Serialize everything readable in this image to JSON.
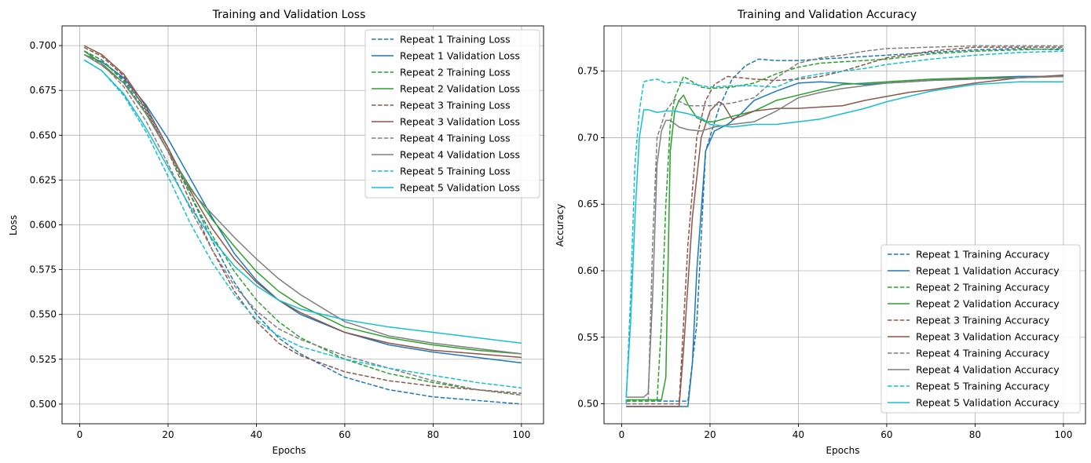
{
  "chart_data": [
    {
      "type": "line",
      "title": "Training and Validation Loss",
      "xlabel": "Epochs",
      "ylabel": "Loss",
      "xlim": [
        -4,
        105
      ],
      "ylim": [
        0.489,
        0.711
      ],
      "xticks": [
        0,
        20,
        40,
        60,
        80,
        100
      ],
      "yticks": [
        0.5,
        0.525,
        0.55,
        0.575,
        0.6,
        0.625,
        0.65,
        0.675,
        0.7
      ],
      "ytick_labels": [
        "0.500",
        "0.525",
        "0.550",
        "0.575",
        "0.600",
        "0.625",
        "0.650",
        "0.675",
        "0.700"
      ],
      "grid": true,
      "legend_position": "top-right",
      "series": [
        {
          "name": "Repeat 1 Training Loss",
          "style": "dashed",
          "color": "#1f77b4",
          "x": [
            1,
            5,
            10,
            15,
            20,
            25,
            30,
            35,
            40,
            45,
            50,
            60,
            70,
            80,
            90,
            100
          ],
          "y": [
            0.697,
            0.692,
            0.681,
            0.665,
            0.643,
            0.617,
            0.591,
            0.568,
            0.55,
            0.537,
            0.528,
            0.515,
            0.508,
            0.504,
            0.502,
            0.5
          ]
        },
        {
          "name": "Repeat 1 Validation Loss",
          "style": "solid",
          "color": "#1f77b4",
          "x": [
            1,
            5,
            10,
            15,
            20,
            25,
            30,
            35,
            40,
            45,
            50,
            60,
            70,
            80,
            90,
            100
          ],
          "y": [
            0.695,
            0.691,
            0.682,
            0.667,
            0.648,
            0.626,
            0.604,
            0.584,
            0.569,
            0.558,
            0.55,
            0.54,
            0.533,
            0.529,
            0.526,
            0.523
          ]
        },
        {
          "name": "Repeat 2 Training Loss",
          "style": "dashed",
          "color": "#2ca02c",
          "x": [
            1,
            5,
            10,
            15,
            20,
            25,
            30,
            35,
            40,
            45,
            50,
            60,
            70,
            80,
            90,
            100
          ],
          "y": [
            0.697,
            0.692,
            0.68,
            0.663,
            0.641,
            0.617,
            0.594,
            0.574,
            0.558,
            0.546,
            0.537,
            0.525,
            0.517,
            0.512,
            0.508,
            0.505
          ]
        },
        {
          "name": "Repeat 2 Validation Loss",
          "style": "solid",
          "color": "#2ca02c",
          "x": [
            1,
            5,
            10,
            15,
            20,
            25,
            30,
            35,
            40,
            45,
            50,
            60,
            70,
            80,
            90,
            100
          ],
          "y": [
            0.697,
            0.69,
            0.679,
            0.662,
            0.641,
            0.621,
            0.603,
            0.588,
            0.574,
            0.563,
            0.555,
            0.543,
            0.537,
            0.533,
            0.53,
            0.528
          ]
        },
        {
          "name": "Repeat 3 Training Loss",
          "style": "dashed",
          "color": "#8c564b",
          "x": [
            1,
            5,
            10,
            15,
            20,
            25,
            30,
            35,
            40,
            45,
            50,
            60,
            70,
            80,
            90,
            100
          ],
          "y": [
            0.699,
            0.694,
            0.683,
            0.664,
            0.641,
            0.613,
            0.586,
            0.563,
            0.546,
            0.534,
            0.527,
            0.518,
            0.513,
            0.51,
            0.508,
            0.506
          ]
        },
        {
          "name": "Repeat 3 Validation Loss",
          "style": "solid",
          "color": "#8c564b",
          "x": [
            1,
            5,
            10,
            15,
            20,
            25,
            30,
            35,
            40,
            45,
            50,
            60,
            70,
            80,
            90,
            100
          ],
          "y": [
            0.7,
            0.695,
            0.684,
            0.666,
            0.643,
            0.619,
            0.598,
            0.581,
            0.568,
            0.558,
            0.551,
            0.54,
            0.534,
            0.53,
            0.528,
            0.526
          ]
        },
        {
          "name": "Repeat 4 Training Loss",
          "style": "dashed",
          "color": "#7f7f7f",
          "x": [
            1,
            5,
            10,
            15,
            20,
            25,
            30,
            35,
            40,
            45,
            50,
            60,
            70,
            80,
            90,
            100
          ],
          "y": [
            0.695,
            0.69,
            0.677,
            0.658,
            0.634,
            0.609,
            0.586,
            0.566,
            0.552,
            0.542,
            0.536,
            0.527,
            0.52,
            0.513,
            0.508,
            0.505
          ]
        },
        {
          "name": "Repeat 4 Validation Loss",
          "style": "solid",
          "color": "#7f7f7f",
          "x": [
            1,
            5,
            10,
            15,
            20,
            25,
            27,
            30,
            35,
            40,
            45,
            50,
            60,
            70,
            80,
            90,
            100
          ],
          "y": [
            0.695,
            0.689,
            0.679,
            0.662,
            0.641,
            0.62,
            0.614,
            0.606,
            0.593,
            0.581,
            0.57,
            0.561,
            0.546,
            0.538,
            0.534,
            0.531,
            0.528
          ]
        },
        {
          "name": "Repeat 5 Training Loss",
          "style": "dashed",
          "color": "#17becf",
          "x": [
            1,
            5,
            10,
            15,
            20,
            25,
            30,
            35,
            40,
            45,
            50,
            60,
            70,
            80,
            90,
            100
          ],
          "y": [
            0.692,
            0.686,
            0.672,
            0.652,
            0.627,
            0.601,
            0.579,
            0.561,
            0.547,
            0.538,
            0.532,
            0.525,
            0.52,
            0.516,
            0.512,
            0.509
          ]
        },
        {
          "name": "Repeat 5 Validation Loss",
          "style": "solid",
          "color": "#17becf",
          "x": [
            1,
            5,
            10,
            15,
            20,
            25,
            30,
            35,
            40,
            45,
            50,
            60,
            70,
            80,
            90,
            100
          ],
          "y": [
            0.692,
            0.686,
            0.673,
            0.654,
            0.632,
            0.61,
            0.592,
            0.577,
            0.566,
            0.558,
            0.553,
            0.547,
            0.543,
            0.54,
            0.537,
            0.534
          ]
        }
      ]
    },
    {
      "type": "line",
      "title": "Training and Validation Accuracy",
      "xlabel": "Epochs",
      "ylabel": "Accuracy",
      "xlim": [
        -4,
        105
      ],
      "ylim": [
        0.485,
        0.784
      ],
      "xticks": [
        0,
        20,
        40,
        60,
        80,
        100
      ],
      "yticks": [
        0.5,
        0.55,
        0.6,
        0.65,
        0.7,
        0.75
      ],
      "ytick_labels": [
        "0.50",
        "0.55",
        "0.60",
        "0.65",
        "0.70",
        "0.75"
      ],
      "grid": true,
      "legend_position": "bottom-right",
      "series": [
        {
          "name": "Repeat 1 Training Accuracy",
          "style": "dashed",
          "color": "#1f77b4",
          "x": [
            1,
            14,
            15,
            17,
            19,
            22,
            25,
            28,
            31,
            35,
            40,
            45,
            50,
            55,
            60,
            70,
            80,
            90,
            100
          ],
          "y": [
            0.502,
            0.502,
            0.502,
            0.56,
            0.69,
            0.722,
            0.744,
            0.754,
            0.759,
            0.758,
            0.758,
            0.759,
            0.76,
            0.761,
            0.762,
            0.764,
            0.766,
            0.767,
            0.766
          ]
        },
        {
          "name": "Repeat 1 Validation Accuracy",
          "style": "solid",
          "color": "#1f77b4",
          "x": [
            1,
            14,
            15,
            16,
            17,
            19,
            21,
            24,
            27,
            30,
            35,
            40,
            45,
            50,
            55,
            60,
            70,
            80,
            90,
            100
          ],
          "y": [
            0.498,
            0.498,
            0.498,
            0.53,
            0.6,
            0.69,
            0.705,
            0.71,
            0.718,
            0.728,
            0.735,
            0.741,
            0.742,
            0.741,
            0.74,
            0.741,
            0.743,
            0.745,
            0.746,
            0.746
          ]
        },
        {
          "name": "Repeat 2 Training Accuracy",
          "style": "dashed",
          "color": "#2ca02c",
          "x": [
            1,
            7,
            8,
            9,
            10,
            11,
            12,
            14,
            16,
            18,
            20,
            25,
            30,
            35,
            40,
            45,
            50,
            60,
            70,
            80,
            90,
            100
          ],
          "y": [
            0.502,
            0.502,
            0.502,
            0.56,
            0.65,
            0.71,
            0.73,
            0.746,
            0.742,
            0.738,
            0.737,
            0.738,
            0.741,
            0.748,
            0.753,
            0.756,
            0.757,
            0.759,
            0.763,
            0.765,
            0.766,
            0.767
          ]
        },
        {
          "name": "Repeat 2 Validation Accuracy",
          "style": "solid",
          "color": "#2ca02c",
          "x": [
            1,
            8,
            9,
            10,
            11,
            12,
            13,
            14,
            15,
            17,
            19,
            21,
            25,
            30,
            35,
            40,
            45,
            50,
            60,
            70,
            80,
            90,
            100
          ],
          "y": [
            0.503,
            0.503,
            0.503,
            0.52,
            0.69,
            0.72,
            0.728,
            0.732,
            0.725,
            0.715,
            0.712,
            0.712,
            0.716,
            0.72,
            0.728,
            0.732,
            0.736,
            0.74,
            0.742,
            0.744,
            0.745,
            0.745,
            0.746
          ]
        },
        {
          "name": "Repeat 3 Training Accuracy",
          "style": "dashed",
          "color": "#8c564b",
          "x": [
            1,
            12,
            13,
            15,
            17,
            19,
            21,
            24,
            27,
            30,
            35,
            40,
            45,
            50,
            55,
            60,
            70,
            80,
            90,
            100
          ],
          "y": [
            0.5,
            0.5,
            0.5,
            0.62,
            0.7,
            0.728,
            0.74,
            0.746,
            0.745,
            0.744,
            0.743,
            0.744,
            0.746,
            0.75,
            0.755,
            0.76,
            0.765,
            0.768,
            0.768,
            0.768
          ]
        },
        {
          "name": "Repeat 3 Validation Accuracy",
          "style": "solid",
          "color": "#8c564b",
          "x": [
            1,
            12,
            13,
            14,
            16,
            18,
            20,
            22,
            23,
            25,
            27,
            30,
            35,
            40,
            45,
            50,
            55,
            60,
            65,
            70,
            80,
            90,
            100
          ],
          "y": [
            0.498,
            0.498,
            0.498,
            0.54,
            0.64,
            0.7,
            0.72,
            0.727,
            0.725,
            0.714,
            0.716,
            0.72,
            0.722,
            0.722,
            0.723,
            0.724,
            0.728,
            0.731,
            0.734,
            0.736,
            0.741,
            0.745,
            0.747
          ]
        },
        {
          "name": "Repeat 4 Training Accuracy",
          "style": "dashed",
          "color": "#7f7f7f",
          "x": [
            1,
            5,
            6,
            7,
            8,
            10,
            12,
            15,
            20,
            25,
            30,
            35,
            40,
            45,
            50,
            55,
            60,
            70,
            80,
            90,
            100
          ],
          "y": [
            0.5,
            0.5,
            0.5,
            0.62,
            0.7,
            0.72,
            0.729,
            0.724,
            0.724,
            0.726,
            0.73,
            0.745,
            0.756,
            0.76,
            0.762,
            0.765,
            0.767,
            0.768,
            0.769,
            0.769,
            0.769
          ]
        },
        {
          "name": "Repeat 4 Validation Accuracy",
          "style": "solid",
          "color": "#7f7f7f",
          "x": [
            1,
            5,
            6,
            7,
            8,
            9,
            10,
            11,
            13,
            15,
            18,
            21,
            25,
            30,
            35,
            40,
            45,
            50,
            55,
            60,
            70,
            80,
            90,
            100
          ],
          "y": [
            0.505,
            0.505,
            0.508,
            0.58,
            0.68,
            0.705,
            0.713,
            0.713,
            0.708,
            0.706,
            0.705,
            0.708,
            0.71,
            0.712,
            0.72,
            0.73,
            0.734,
            0.737,
            0.739,
            0.741,
            0.743,
            0.744,
            0.745,
            0.746
          ]
        },
        {
          "name": "Repeat 5 Training Accuracy",
          "style": "dashed",
          "color": "#17becf",
          "x": [
            1,
            2,
            3,
            4,
            5,
            6,
            8,
            10,
            12,
            15,
            20,
            25,
            30,
            35,
            40,
            45,
            50,
            55,
            60,
            70,
            80,
            90,
            100
          ],
          "y": [
            0.5,
            0.58,
            0.68,
            0.72,
            0.742,
            0.743,
            0.744,
            0.741,
            0.742,
            0.741,
            0.738,
            0.739,
            0.739,
            0.738,
            0.745,
            0.748,
            0.75,
            0.752,
            0.755,
            0.759,
            0.762,
            0.764,
            0.765
          ]
        },
        {
          "name": "Repeat 5 Validation Accuracy",
          "style": "solid",
          "color": "#17becf",
          "x": [
            1,
            2,
            3,
            4,
            5,
            6,
            8,
            10,
            12,
            15,
            18,
            20,
            25,
            30,
            35,
            40,
            45,
            50,
            55,
            60,
            70,
            80,
            90,
            100
          ],
          "y": [
            0.505,
            0.56,
            0.64,
            0.7,
            0.721,
            0.721,
            0.719,
            0.72,
            0.72,
            0.718,
            0.715,
            0.71,
            0.708,
            0.71,
            0.71,
            0.712,
            0.714,
            0.718,
            0.722,
            0.727,
            0.735,
            0.74,
            0.742,
            0.742
          ]
        }
      ]
    }
  ]
}
